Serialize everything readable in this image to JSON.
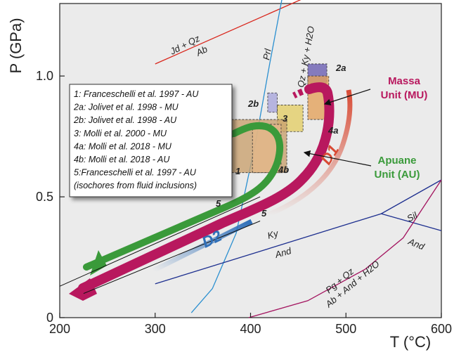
{
  "chart_data": {
    "type": "line",
    "xlabel": "T (°C)",
    "ylabel": "P (GPa)",
    "xlim": [
      200,
      600
    ],
    "ylim": [
      0,
      1.3
    ],
    "x_ticks": [
      "200",
      "300",
      "400",
      "500",
      "600"
    ],
    "y_ticks": [
      "0",
      "0.5",
      "1.0"
    ],
    "reactions": [
      {
        "label": "Jd + Qz",
        "label2": "Ab",
        "color": "#d9261c",
        "points": [
          [
            300,
            1.05
          ],
          [
            455,
            1.32
          ]
        ]
      },
      {
        "label": "Prl",
        "label2": "Qz + Ky + H2O",
        "color": "#2a8fd0",
        "points": [
          [
            338,
            0.02
          ],
          [
            360,
            0.12
          ],
          [
            385,
            0.35
          ],
          [
            405,
            0.72
          ],
          [
            420,
            1.05
          ],
          [
            433,
            1.32
          ]
        ]
      },
      {
        "label": "Ky",
        "label2": "And",
        "color": "#1d2f8f",
        "points": [
          [
            300,
            0.14
          ],
          [
            537,
            0.43
          ],
          [
            600,
            0.57
          ]
        ]
      },
      {
        "label": "Sil",
        "label2": "",
        "color": "#1d2f8f",
        "points": [
          [
            537,
            0.43
          ],
          [
            600,
            0.36
          ]
        ]
      },
      {
        "label": "Pg + Qz",
        "label2": "Ab + And + H2O",
        "color": "#a3145f",
        "points": [
          [
            398,
            0.0
          ],
          [
            460,
            0.07
          ],
          [
            520,
            0.2
          ],
          [
            560,
            0.33
          ],
          [
            600,
            0.57
          ]
        ]
      }
    ],
    "isochores": [
      {
        "label": "5",
        "points": [
          [
            200,
            0.13
          ],
          [
            410,
            0.5
          ]
        ]
      },
      {
        "label": "5",
        "points": [
          [
            225,
            0.1
          ],
          [
            410,
            0.4
          ]
        ]
      }
    ],
    "boxes": [
      {
        "label": "2a",
        "x": [
          460,
          480
        ],
        "y": [
          0.97,
          1.05
        ],
        "color": "#6c5fb3"
      },
      {
        "label": "4a",
        "x": [
          460,
          482
        ],
        "y": [
          0.82,
          1.0
        ],
        "color": "#e3a35c"
      },
      {
        "label": "2b",
        "x": [
          418,
          428
        ],
        "y": [
          0.85,
          0.93
        ],
        "color": "#a9a6dc"
      },
      {
        "label": "3",
        "x": [
          428,
          455
        ],
        "y": [
          0.77,
          0.88
        ],
        "color": "#e3ce68"
      },
      {
        "label": "1",
        "x": [
          380,
          438
        ],
        "y": [
          0.6,
          0.82
        ],
        "color": "#c9a16f"
      },
      {
        "label": "4b",
        "x": [
          402,
          432
        ],
        "y": [
          0.6,
          0.8
        ],
        "color": "#e4b88a"
      }
    ],
    "paths": [
      {
        "label": "D1",
        "color": "#d84a34"
      },
      {
        "label": "D2",
        "color": "#2f6fb8"
      },
      {
        "label": "Massa Unit (MU)",
        "color": "#b8185e"
      },
      {
        "label": "Apuane Unit (AU)",
        "color": "#3a9a3a"
      }
    ],
    "legend": [
      "1: Franceschelli et al. 1997 - AU",
      "2a: Jolivet et al. 1998 - MU",
      "2b: Jolivet et al. 1998 - AU",
      "3: Molli et al. 2000 - MU",
      "4a: Molli et al. 2018 - MU",
      "4b: Molli et al. 2018 - AU",
      "5:Franceschelli et al. 1997 - AU",
      "(isochores from fluid inclusions)"
    ],
    "legend_placement": "left"
  }
}
